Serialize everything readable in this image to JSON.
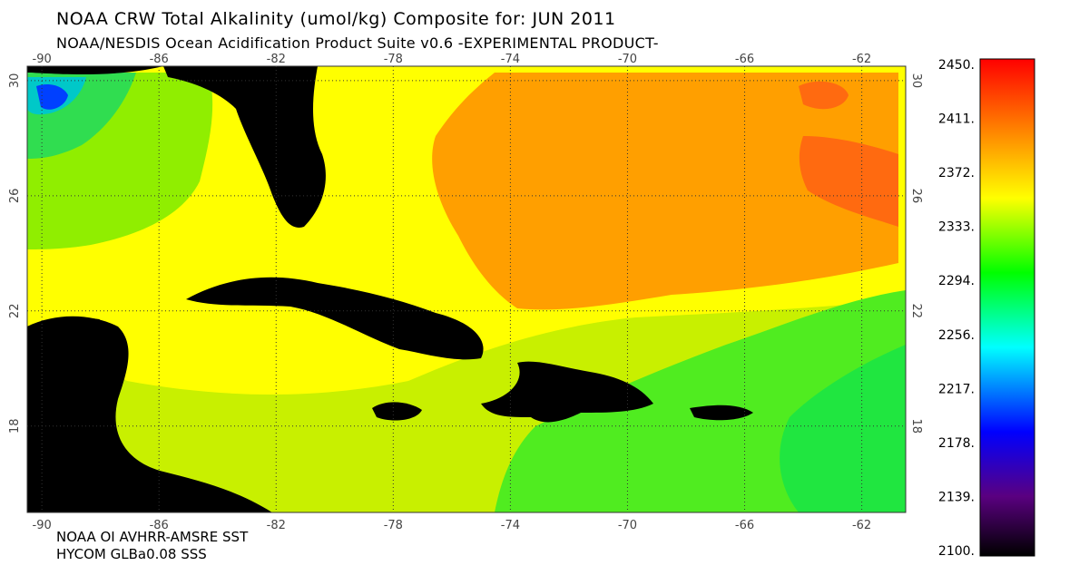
{
  "header": {
    "title": "NOAA CRW Total Alkalinity (umol/kg) Composite for: JUN 2011",
    "subtitle": "NOAA/NESDIS Ocean Acidification Product Suite  v0.6 -EXPERIMENTAL PRODUCT-"
  },
  "footer": {
    "line1": "NOAA OI AVHRR-AMSRE SST",
    "line2": "HYCOM GLBa0.08 SSS"
  },
  "map": {
    "lon_labels": [
      "-90",
      "-86",
      "-82",
      "-78",
      "-74",
      "-70",
      "-66",
      "-62"
    ],
    "lat_labels": [
      "30",
      "26",
      "22",
      "18"
    ],
    "lon_range": [
      -90.5,
      -60.5
    ],
    "lat_range": [
      15,
      30.5
    ],
    "grid": true,
    "land_color": "#000000"
  },
  "colorbar": {
    "labels": [
      "2450.",
      "2411.",
      "2372.",
      "2333.",
      "2294.",
      "2256.",
      "2217.",
      "2178.",
      "2139.",
      "2100."
    ],
    "min": 2100,
    "max": 2450,
    "colors": [
      "#000000",
      "#5a0080",
      "#0000ff",
      "#00ffff",
      "#00ff00",
      "#ffff00",
      "#ff8000",
      "#ff0000"
    ]
  }
}
